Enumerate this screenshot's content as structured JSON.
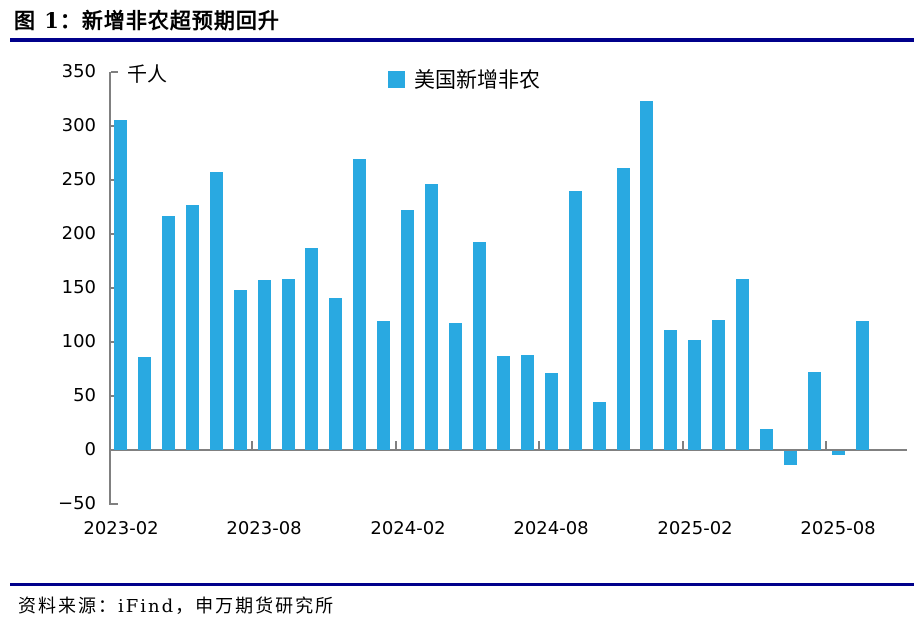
{
  "page": {
    "title": "图 1：新增非农超预期回升",
    "source": "资料来源：iFind，申万期货研究所"
  },
  "chart": {
    "unit_label": "千人",
    "legend": {
      "label": "美国新增非农",
      "swatch_color": "#29a9e1"
    }
  },
  "colors": {
    "bar": "#29a9e1",
    "divider_rule": "#00008b",
    "axis": "#808080",
    "text": "#000000"
  },
  "chart_data": {
    "type": "bar",
    "title": "图 1：新增非农超预期回升",
    "ylabel_unit": "千人",
    "legend_entries": [
      "美国新增非农"
    ],
    "legend_position": "top-center",
    "grid": false,
    "ylim": [
      -50,
      350
    ],
    "yticks": [
      350,
      300,
      250,
      200,
      150,
      100,
      50,
      0,
      -50
    ],
    "xtick_labels_shown": [
      "2023-02",
      "2023-08",
      "2024-02",
      "2024-08",
      "2025-02",
      "2025-08"
    ],
    "xtick_label_indices": [
      0,
      6,
      12,
      18,
      24,
      30
    ],
    "categories": [
      "2023-02",
      "2023-03",
      "2023-04",
      "2023-05",
      "2023-06",
      "2023-07",
      "2023-08",
      "2023-09",
      "2023-10",
      "2023-11",
      "2023-12",
      "2024-01",
      "2024-02",
      "2024-03",
      "2024-04",
      "2024-05",
      "2024-06",
      "2024-07",
      "2024-08",
      "2024-09",
      "2024-10",
      "2024-11",
      "2024-12",
      "2025-01",
      "2025-02",
      "2025-03",
      "2025-04",
      "2025-05",
      "2025-06",
      "2025-07",
      "2025-08",
      "2025-09"
    ],
    "values": [
      306,
      86,
      217,
      227,
      257,
      148,
      157,
      158,
      187,
      141,
      269,
      119,
      222,
      246,
      118,
      193,
      87,
      88,
      71,
      240,
      44,
      261,
      323,
      111,
      102,
      120,
      158,
      19,
      -13,
      72,
      -4,
      119
    ]
  }
}
